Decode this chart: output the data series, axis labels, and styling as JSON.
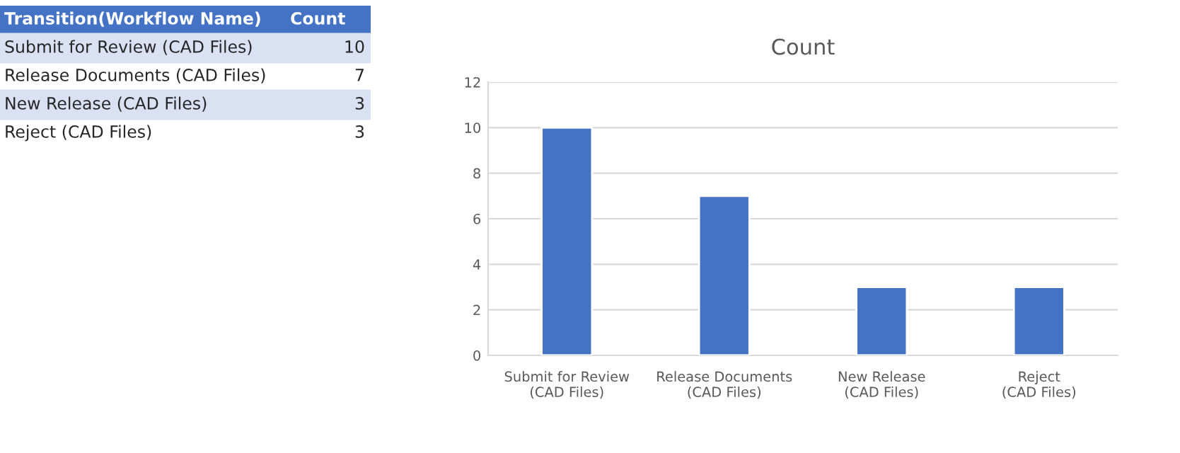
{
  "chart_data": [
    {
      "type": "other",
      "xlabel": "Transition(Workflow Name)",
      "ylabel": "Count",
      "categories": [
        "Submit for Review (CAD Files)",
        "Release Documents (CAD Files)",
        "New Release (CAD Files)",
        "Reject (CAD Files)"
      ],
      "values": [
        10,
        7,
        3,
        3
      ],
      "data_labels": true,
      "color": "#d9e1f2"
    },
    {
      "type": "bar",
      "title": "Count",
      "categories": [
        "Submit for Review (CAD Files)",
        "Release Documents (CAD Files)",
        "New Release (CAD Files)",
        "Reject (CAD Files)"
      ],
      "values": [
        10,
        7,
        3,
        3
      ],
      "color": "#4472c4",
      "ylim": [
        0,
        12
      ],
      "yticks": [
        0,
        2,
        4,
        6,
        8,
        10,
        12
      ],
      "grid": "y"
    }
  ]
}
